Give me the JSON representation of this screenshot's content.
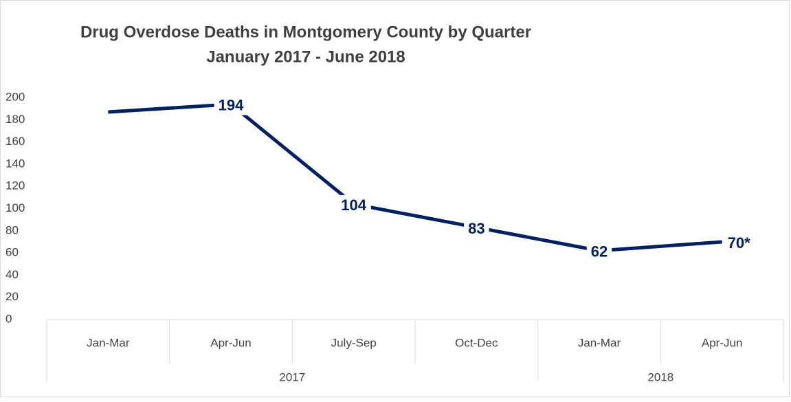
{
  "chart_data": {
    "type": "line",
    "title": "Drug Overdose Deaths in Montgomery County by Quarter",
    "subtitle": "January 2017 - June 2018",
    "categories": [
      "Jan-Mar",
      "Apr-Jun",
      "July-Sep",
      "Oct-Dec",
      "Jan-Mar",
      "Apr-Jun"
    ],
    "groups": [
      {
        "name": "2017",
        "count": 4
      },
      {
        "name": "2018",
        "count": 2
      }
    ],
    "series": [
      {
        "name": "Drug Overdose Deaths",
        "color": "#002060",
        "values": [
          187,
          194,
          104,
          83,
          62,
          70
        ],
        "value_labels": [
          null,
          "194",
          "104",
          "83",
          "62",
          "70*"
        ]
      }
    ],
    "ylim": [
      0,
      200
    ],
    "yticks": [
      0,
      20,
      40,
      60,
      80,
      100,
      120,
      140,
      160,
      180,
      200
    ],
    "grid": false
  }
}
